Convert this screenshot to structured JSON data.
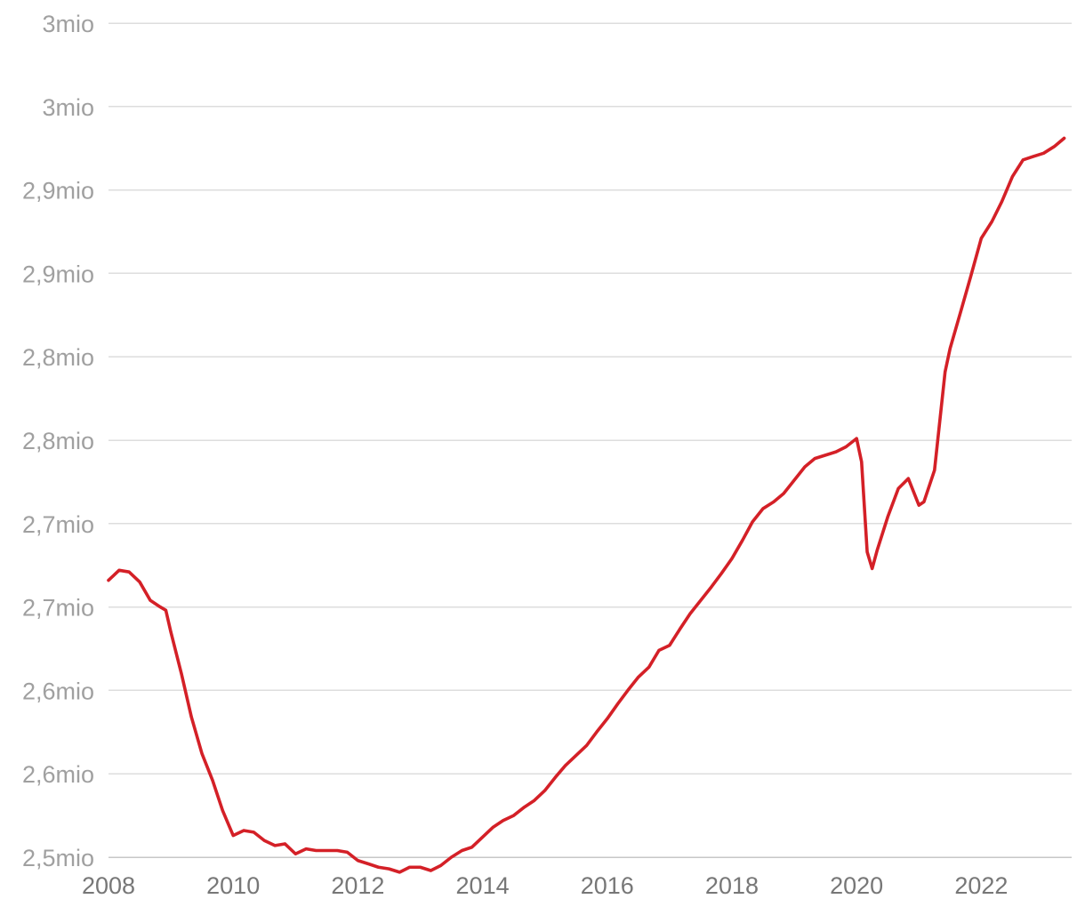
{
  "chart_data": {
    "type": "line",
    "title": "",
    "xlabel": "",
    "ylabel": "",
    "xlim": [
      2008,
      2023.45
    ],
    "ylim": [
      2.5,
      3.0
    ],
    "grid": true,
    "legend": "none",
    "y_ticks": [
      {
        "value": 2.5,
        "label": "2,5mio"
      },
      {
        "value": 2.55,
        "label": "2,6mio"
      },
      {
        "value": 2.6,
        "label": "2,6mio"
      },
      {
        "value": 2.65,
        "label": "2,7mio"
      },
      {
        "value": 2.7,
        "label": "2,7mio"
      },
      {
        "value": 2.75,
        "label": "2,8mio"
      },
      {
        "value": 2.8,
        "label": "2,8mio"
      },
      {
        "value": 2.85,
        "label": "2,9mio"
      },
      {
        "value": 2.9,
        "label": "2,9mio"
      },
      {
        "value": 2.95,
        "label": "3mio"
      },
      {
        "value": 3.0,
        "label": "3mio"
      }
    ],
    "x_ticks": [
      {
        "value": 2008,
        "label": "2008"
      },
      {
        "value": 2010,
        "label": "2010"
      },
      {
        "value": 2012,
        "label": "2012"
      },
      {
        "value": 2014,
        "label": "2014"
      },
      {
        "value": 2016,
        "label": "2016"
      },
      {
        "value": 2018,
        "label": "2018"
      },
      {
        "value": 2020,
        "label": "2020"
      },
      {
        "value": 2022,
        "label": "2022"
      }
    ],
    "series": [
      {
        "color": "#d42027",
        "points": [
          [
            2008.0,
            2.666
          ],
          [
            2008.17,
            2.672
          ],
          [
            2008.33,
            2.671
          ],
          [
            2008.5,
            2.665
          ],
          [
            2008.67,
            2.654
          ],
          [
            2008.83,
            2.65
          ],
          [
            2008.92,
            2.648
          ],
          [
            2009.0,
            2.635
          ],
          [
            2009.17,
            2.61
          ],
          [
            2009.33,
            2.584
          ],
          [
            2009.5,
            2.562
          ],
          [
            2009.67,
            2.546
          ],
          [
            2009.83,
            2.528
          ],
          [
            2010.0,
            2.513
          ],
          [
            2010.17,
            2.516
          ],
          [
            2010.33,
            2.515
          ],
          [
            2010.5,
            2.51
          ],
          [
            2010.67,
            2.507
          ],
          [
            2010.83,
            2.508
          ],
          [
            2011.0,
            2.502
          ],
          [
            2011.17,
            2.505
          ],
          [
            2011.33,
            2.504
          ],
          [
            2011.5,
            2.504
          ],
          [
            2011.67,
            2.504
          ],
          [
            2011.83,
            2.503
          ],
          [
            2012.0,
            2.498
          ],
          [
            2012.17,
            2.496
          ],
          [
            2012.33,
            2.494
          ],
          [
            2012.5,
            2.493
          ],
          [
            2012.67,
            2.491
          ],
          [
            2012.83,
            2.494
          ],
          [
            2013.0,
            2.494
          ],
          [
            2013.17,
            2.492
          ],
          [
            2013.33,
            2.495
          ],
          [
            2013.5,
            2.5
          ],
          [
            2013.67,
            2.504
          ],
          [
            2013.83,
            2.506
          ],
          [
            2014.0,
            2.512
          ],
          [
            2014.17,
            2.518
          ],
          [
            2014.33,
            2.522
          ],
          [
            2014.5,
            2.525
          ],
          [
            2014.67,
            2.53
          ],
          [
            2014.83,
            2.534
          ],
          [
            2015.0,
            2.54
          ],
          [
            2015.17,
            2.548
          ],
          [
            2015.33,
            2.555
          ],
          [
            2015.5,
            2.561
          ],
          [
            2015.67,
            2.567
          ],
          [
            2015.83,
            2.575
          ],
          [
            2016.0,
            2.583
          ],
          [
            2016.17,
            2.592
          ],
          [
            2016.33,
            2.6
          ],
          [
            2016.5,
            2.608
          ],
          [
            2016.67,
            2.614
          ],
          [
            2016.83,
            2.624
          ],
          [
            2017.0,
            2.627
          ],
          [
            2017.17,
            2.637
          ],
          [
            2017.33,
            2.646
          ],
          [
            2017.5,
            2.654
          ],
          [
            2017.67,
            2.662
          ],
          [
            2017.83,
            2.67
          ],
          [
            2018.0,
            2.679
          ],
          [
            2018.17,
            2.69
          ],
          [
            2018.33,
            2.701
          ],
          [
            2018.5,
            2.709
          ],
          [
            2018.67,
            2.713
          ],
          [
            2018.83,
            2.718
          ],
          [
            2019.0,
            2.726
          ],
          [
            2019.17,
            2.734
          ],
          [
            2019.33,
            2.739
          ],
          [
            2019.5,
            2.741
          ],
          [
            2019.67,
            2.743
          ],
          [
            2019.83,
            2.746
          ],
          [
            2020.0,
            2.751
          ],
          [
            2020.08,
            2.737
          ],
          [
            2020.17,
            2.683
          ],
          [
            2020.25,
            2.673
          ],
          [
            2020.33,
            2.684
          ],
          [
            2020.5,
            2.704
          ],
          [
            2020.67,
            2.721
          ],
          [
            2020.83,
            2.727
          ],
          [
            2021.0,
            2.711
          ],
          [
            2021.08,
            2.713
          ],
          [
            2021.25,
            2.732
          ],
          [
            2021.42,
            2.791
          ],
          [
            2021.5,
            2.805
          ],
          [
            2021.67,
            2.827
          ],
          [
            2021.83,
            2.848
          ],
          [
            2022.0,
            2.871
          ],
          [
            2022.17,
            2.881
          ],
          [
            2022.33,
            2.893
          ],
          [
            2022.5,
            2.908
          ],
          [
            2022.67,
            2.918
          ],
          [
            2022.83,
            2.92
          ],
          [
            2023.0,
            2.922
          ],
          [
            2023.17,
            2.926
          ],
          [
            2023.33,
            2.931
          ]
        ]
      }
    ]
  }
}
